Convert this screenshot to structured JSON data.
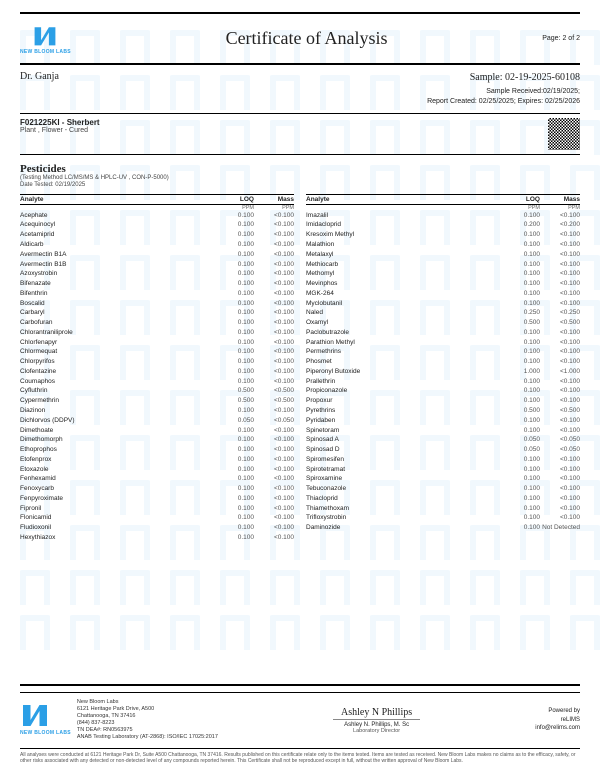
{
  "header": {
    "lab_name": "NEW BLOOM LABS",
    "title": "Certificate of Analysis",
    "page": "Page: 2 of 2",
    "logo_color": "#2b9fe6"
  },
  "client": "Dr. Ganja",
  "sample": {
    "id_label": "Sample: 02-19-2025-60108",
    "received": "Sample Received:02/19/2025;",
    "report": "Report Created: 02/25/2025; Expires: 02/25/2026"
  },
  "product": {
    "code": "F021225KI - Sherbert",
    "desc": "Plant , Flower - Cured"
  },
  "section": {
    "title": "Pesticides",
    "method": "(Testing Method LC/MS/MS & HPLC-UV , CON-P-5000)",
    "date": "Date Tested: 02/19/2025"
  },
  "col_headers": {
    "analyte": "Analyte",
    "loq": "LOQ",
    "mass": "Mass",
    "unit": "PPM"
  },
  "left": [
    {
      "a": "Acephate",
      "l": "0.100",
      "m": "<0.100"
    },
    {
      "a": "Acequinocyl",
      "l": "0.100",
      "m": "<0.100"
    },
    {
      "a": "Acetamiprid",
      "l": "0.100",
      "m": "<0.100"
    },
    {
      "a": "Aldicarb",
      "l": "0.100",
      "m": "<0.100"
    },
    {
      "a": "Avermectin B1A",
      "l": "0.100",
      "m": "<0.100"
    },
    {
      "a": "Avermectin B1B",
      "l": "0.100",
      "m": "<0.100"
    },
    {
      "a": "Azoxystrobin",
      "l": "0.100",
      "m": "<0.100"
    },
    {
      "a": "Bifenazate",
      "l": "0.100",
      "m": "<0.100"
    },
    {
      "a": "Bifenthrin",
      "l": "0.100",
      "m": "<0.100"
    },
    {
      "a": "Boscalid",
      "l": "0.100",
      "m": "<0.100"
    },
    {
      "a": "Carbaryl",
      "l": "0.100",
      "m": "<0.100"
    },
    {
      "a": "Carbofuran",
      "l": "0.100",
      "m": "<0.100"
    },
    {
      "a": "Chlorantraniliprole",
      "l": "0.100",
      "m": "<0.100"
    },
    {
      "a": "Chlorfenapyr",
      "l": "0.100",
      "m": "<0.100"
    },
    {
      "a": "Chlormequat",
      "l": "0.100",
      "m": "<0.100"
    },
    {
      "a": "Chlorpyrifos",
      "l": "0.100",
      "m": "<0.100"
    },
    {
      "a": "Clofentazine",
      "l": "0.100",
      "m": "<0.100"
    },
    {
      "a": "Coumaphos",
      "l": "0.100",
      "m": "<0.100"
    },
    {
      "a": "Cyfluthrin",
      "l": "0.500",
      "m": "<0.500"
    },
    {
      "a": "Cypermethrin",
      "l": "0.500",
      "m": "<0.500"
    },
    {
      "a": "Diazinon",
      "l": "0.100",
      "m": "<0.100"
    },
    {
      "a": "Dichlorvos (DDPV)",
      "l": "0.050",
      "m": "<0.050"
    },
    {
      "a": "Dimethoate",
      "l": "0.100",
      "m": "<0.100"
    },
    {
      "a": "Dimethomorph",
      "l": "0.100",
      "m": "<0.100"
    },
    {
      "a": "Ethoprophos",
      "l": "0.100",
      "m": "<0.100"
    },
    {
      "a": "Etofenprox",
      "l": "0.100",
      "m": "<0.100"
    },
    {
      "a": "Etoxazole",
      "l": "0.100",
      "m": "<0.100"
    },
    {
      "a": "Fenhexamid",
      "l": "0.100",
      "m": "<0.100"
    },
    {
      "a": "Fenoxycarb",
      "l": "0.100",
      "m": "<0.100"
    },
    {
      "a": "Fenpyroximate",
      "l": "0.100",
      "m": "<0.100"
    },
    {
      "a": "Fipronil",
      "l": "0.100",
      "m": "<0.100"
    },
    {
      "a": "Flonicamid",
      "l": "0.100",
      "m": "<0.100"
    },
    {
      "a": "Fludioxonil",
      "l": "0.100",
      "m": "<0.100"
    },
    {
      "a": "Hexythiazox",
      "l": "0.100",
      "m": "<0.100"
    }
  ],
  "right": [
    {
      "a": "Imazalil",
      "l": "0.100",
      "m": "<0.100"
    },
    {
      "a": "Imidacloprid",
      "l": "0.200",
      "m": "<0.200"
    },
    {
      "a": "Kresoxim Methyl",
      "l": "0.100",
      "m": "<0.100"
    },
    {
      "a": "Malathion",
      "l": "0.100",
      "m": "<0.100"
    },
    {
      "a": "Metalaxyl",
      "l": "0.100",
      "m": "<0.100"
    },
    {
      "a": "Methiocarb",
      "l": "0.100",
      "m": "<0.100"
    },
    {
      "a": "Methomyl",
      "l": "0.100",
      "m": "<0.100"
    },
    {
      "a": "Mevinphos",
      "l": "0.100",
      "m": "<0.100"
    },
    {
      "a": "MGK-264",
      "l": "0.100",
      "m": "<0.100"
    },
    {
      "a": "Myclobutanil",
      "l": "0.100",
      "m": "<0.100"
    },
    {
      "a": "Naled",
      "l": "0.250",
      "m": "<0.250"
    },
    {
      "a": "Oxamyl",
      "l": "0.500",
      "m": "<0.500"
    },
    {
      "a": "Paclobutrazole",
      "l": "0.100",
      "m": "<0.100"
    },
    {
      "a": "Parathion Methyl",
      "l": "0.100",
      "m": "<0.100"
    },
    {
      "a": "Permethrins",
      "l": "0.100",
      "m": "<0.100"
    },
    {
      "a": "Phosmet",
      "l": "0.100",
      "m": "<0.100"
    },
    {
      "a": "Piperonyl Butoxide",
      "l": "1.000",
      "m": "<1.000"
    },
    {
      "a": "Prallethrin",
      "l": "0.100",
      "m": "<0.100"
    },
    {
      "a": "Propiconazole",
      "l": "0.100",
      "m": "<0.100"
    },
    {
      "a": "Propoxur",
      "l": "0.100",
      "m": "<0.100"
    },
    {
      "a": "Pyrethrins",
      "l": "0.500",
      "m": "<0.500"
    },
    {
      "a": "Pyridaben",
      "l": "0.100",
      "m": "<0.100"
    },
    {
      "a": "Spinetoram",
      "l": "0.100",
      "m": "<0.100"
    },
    {
      "a": "Spinosad A",
      "l": "0.050",
      "m": "<0.050"
    },
    {
      "a": "Spinosad D",
      "l": "0.050",
      "m": "<0.050"
    },
    {
      "a": "Spiromesifen",
      "l": "0.100",
      "m": "<0.100"
    },
    {
      "a": "Spirotetramat",
      "l": "0.100",
      "m": "<0.100"
    },
    {
      "a": "Spiroxamine",
      "l": "0.100",
      "m": "<0.100"
    },
    {
      "a": "Tebuconazole",
      "l": "0.100",
      "m": "<0.100"
    },
    {
      "a": "Thiacloprid",
      "l": "0.100",
      "m": "<0.100"
    },
    {
      "a": "Thiamethoxam",
      "l": "0.100",
      "m": "<0.100"
    },
    {
      "a": "Trifloxystrobin",
      "l": "0.100",
      "m": "<0.100"
    },
    {
      "a": "Daminozide",
      "l": "0.100",
      "m": "Not Detected"
    }
  ],
  "footer": {
    "addr1": "New Bloom Labs",
    "addr2": "6121 Heritage Park Drive, A500",
    "addr3": "Chattanooga, TN 37416",
    "phone": "(844) 837-8223",
    "dea": "TN DEA#: RN0563975",
    "accred": "ANAB Testing Laboratory (AT-2868): ISO/IEC 17025:2017",
    "sig_name": "Ashley N. Phillips, M. Sc",
    "sig_title": "Laboratory Director",
    "sig_script": "Ashley N Phillips",
    "powered": "Powered by",
    "powered_name": "reLIMS",
    "powered_email": "info@relims.com"
  },
  "disclaimer": "All analyses were conducted at 6121 Heritage Park Dr, Suite A500 Chattanooga, TN 37416. Results published on this certificate relate only to the items tested. Items are tested as received. New Bloom Labs makes no claims as to the efficacy, safety, or other risks associated with any detected or non-detected level of any compounds reported herein. This Certificate shall not be reproduced except in full, without the written approval of New Bloom Labs."
}
